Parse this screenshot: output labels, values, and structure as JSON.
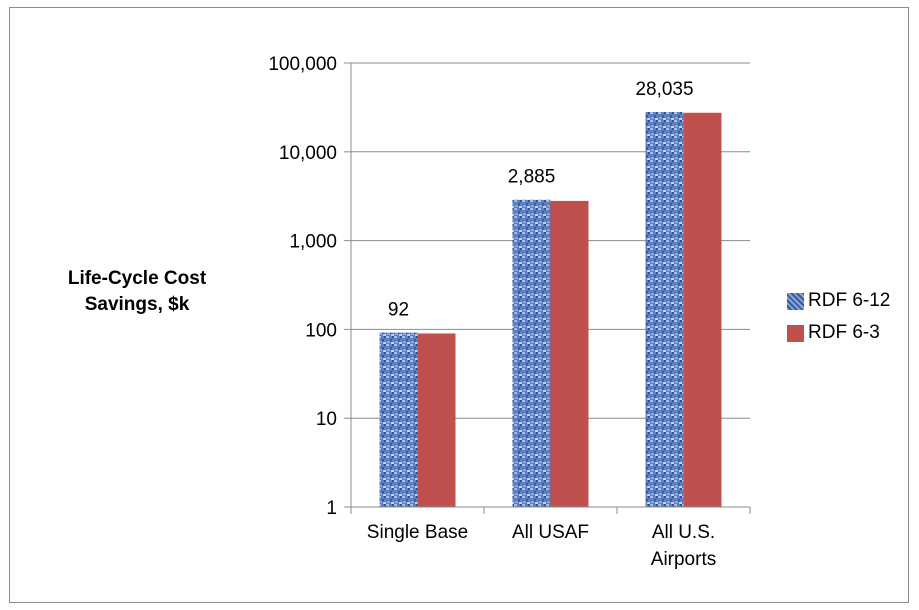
{
  "chart_data": {
    "type": "bar",
    "title": "",
    "ylabel": "Life-Cycle Cost Savings, $k",
    "xlabel": "",
    "yscale": "log",
    "ylim": [
      1,
      100000
    ],
    "yticks": [
      "1",
      "10",
      "100",
      "1,000",
      "10,000",
      "100,000"
    ],
    "categories": [
      "Single Base",
      "All USAF",
      "All U.S. Airports"
    ],
    "series": [
      {
        "name": "RDF 6-12",
        "values": [
          92,
          2885,
          28035
        ],
        "color": "#4f74b8",
        "pattern": "textured-blue"
      },
      {
        "name": "RDF 6-3",
        "values": [
          90,
          2800,
          27500
        ],
        "color": "#c0504d"
      }
    ],
    "data_labels": [
      "92",
      "2,885",
      "28,035"
    ],
    "grid": true,
    "legend": "right"
  }
}
